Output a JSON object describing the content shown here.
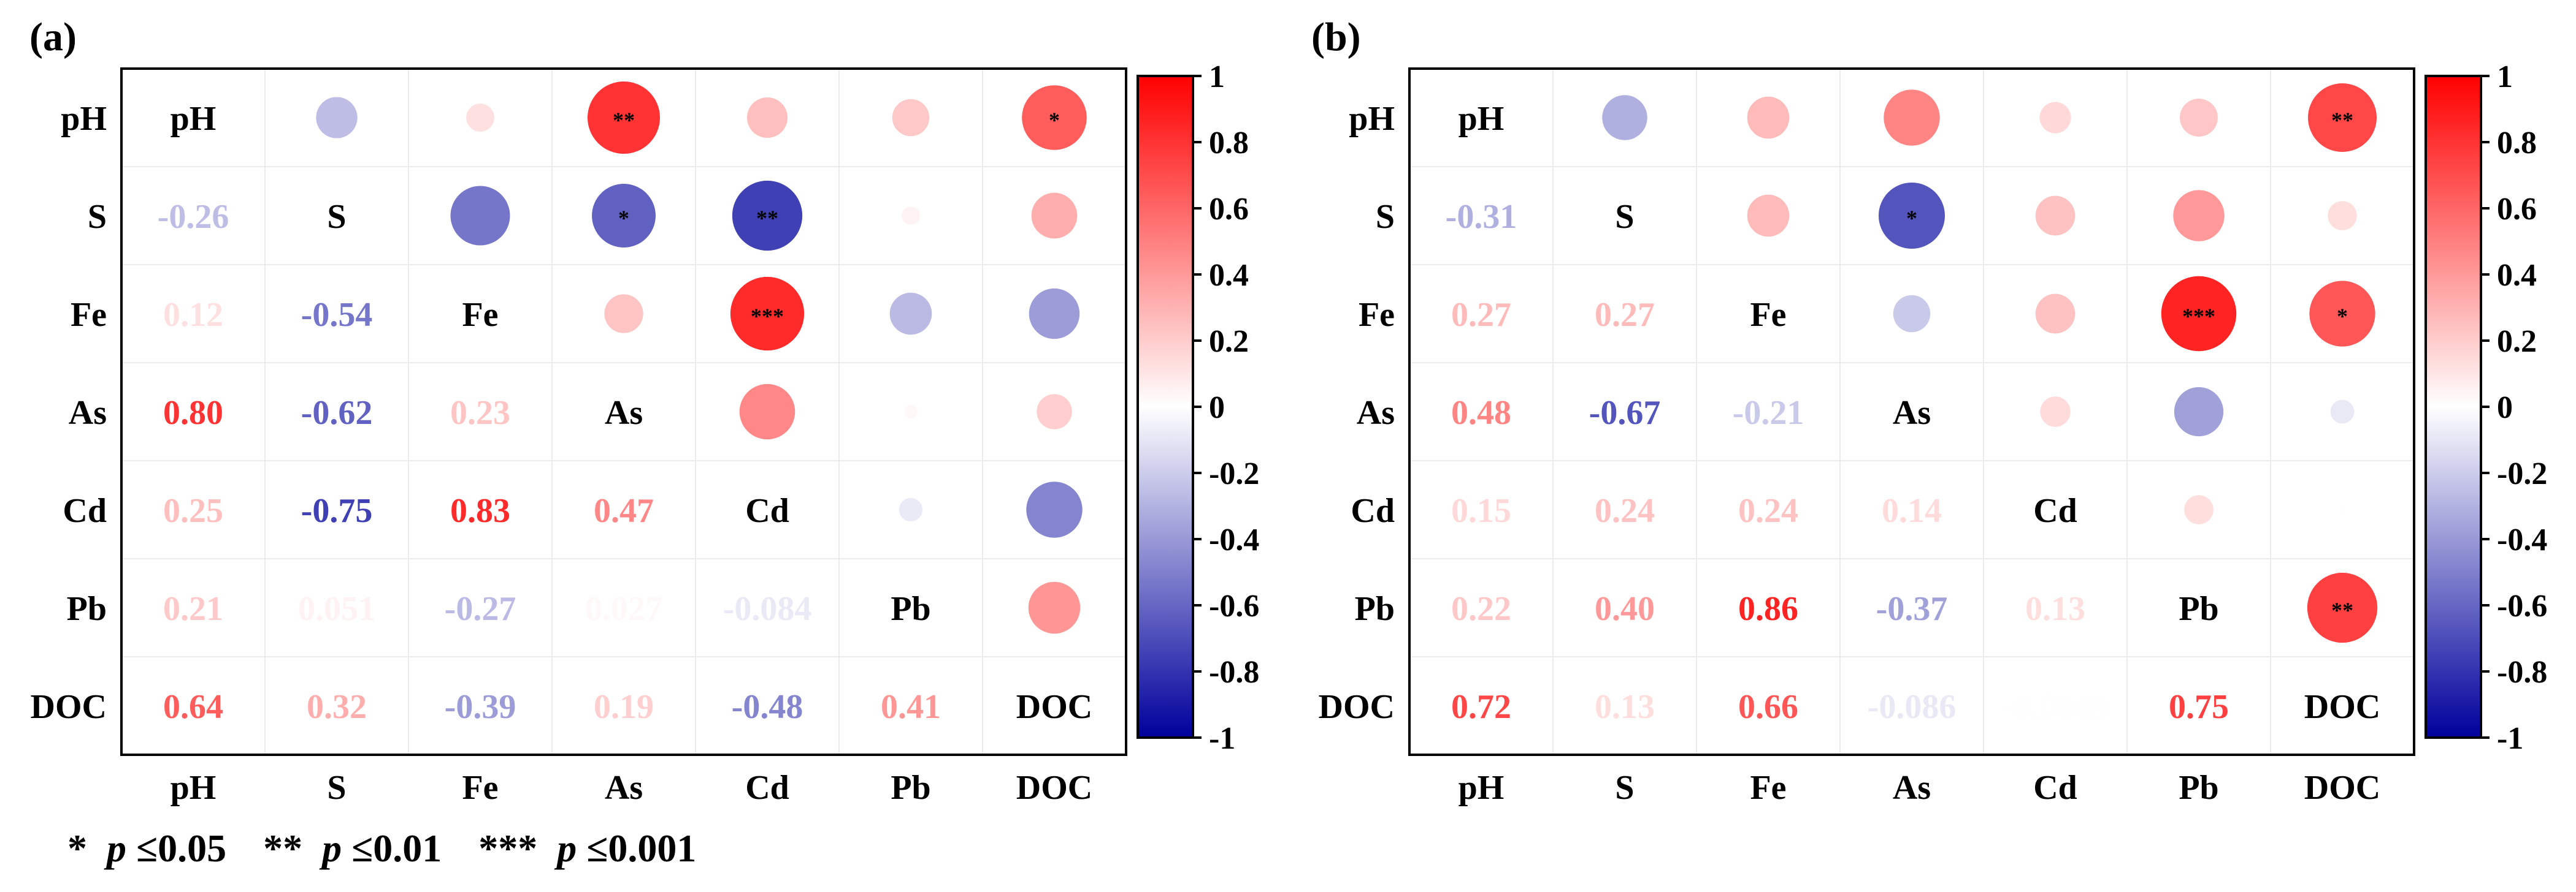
{
  "variables": [
    "pH",
    "S",
    "Fe",
    "As",
    "Cd",
    "Pb",
    "DOC"
  ],
  "colorscale": {
    "min": -1,
    "max": 1,
    "neg_color": "#00009c",
    "zero_color": "#ffffff",
    "pos_color": "#ff0000",
    "ticks": [
      "1",
      "0.8",
      "0.6",
      "0.4",
      "0.2",
      "0",
      "-0.2",
      "-0.4",
      "-0.6",
      "-0.8",
      "-1"
    ]
  },
  "footnote": {
    "s1": "*",
    "p1": "p",
    "r1": "≤0.05",
    "s2": "**",
    "p2": "p",
    "r2": "≤0.01",
    "s3": "***",
    "p3": "p",
    "r3": "≤0.001"
  },
  "chart_data": [
    {
      "type": "heatmap",
      "panel_label": "(a)",
      "variables": [
        "pH",
        "S",
        "Fe",
        "As",
        "Cd",
        "Pb",
        "DOC"
      ],
      "lower_triangle": "number",
      "upper_triangle": "circle",
      "correlations": [
        [
          1,
          -0.26,
          0.12,
          0.8,
          0.25,
          0.21,
          0.64
        ],
        [
          -0.26,
          1,
          -0.54,
          -0.62,
          -0.75,
          0.051,
          0.32
        ],
        [
          0.12,
          -0.54,
          1,
          0.23,
          0.83,
          -0.27,
          -0.39
        ],
        [
          0.8,
          -0.62,
          0.23,
          1,
          0.47,
          0.027,
          0.19
        ],
        [
          0.25,
          -0.75,
          0.83,
          0.47,
          1,
          -0.084,
          -0.48
        ],
        [
          0.21,
          0.051,
          -0.27,
          0.027,
          -0.084,
          1,
          0.41
        ],
        [
          0.64,
          0.32,
          -0.39,
          0.19,
          -0.48,
          0.41,
          1
        ]
      ],
      "labels": [
        [
          "pH",
          "",
          "",
          "",
          "",
          "",
          ""
        ],
        [
          "-0.26",
          "S",
          "",
          "",
          "",
          "",
          ""
        ],
        [
          "0.12",
          "-0.54",
          "Fe",
          "",
          "",
          "",
          ""
        ],
        [
          "0.80",
          "-0.62",
          "0.23",
          "As",
          "",
          "",
          ""
        ],
        [
          "0.25",
          "-0.75",
          "0.83",
          "0.47",
          "Cd",
          "",
          ""
        ],
        [
          "0.21",
          "0.051",
          "-0.27",
          "0.027",
          "-0.084",
          "Pb",
          ""
        ],
        [
          "0.64",
          "0.32",
          "-0.39",
          "0.19",
          "-0.48",
          "0.41",
          "DOC"
        ]
      ],
      "significance": [
        [
          "",
          "",
          "",
          "**",
          "",
          "",
          "*"
        ],
        [
          "",
          "",
          "",
          "*",
          "**",
          "",
          ""
        ],
        [
          "",
          "",
          "",
          "",
          "***",
          "",
          ""
        ],
        [
          "",
          "",
          "",
          "",
          "",
          "",
          ""
        ],
        [
          "",
          "",
          "",
          "",
          "",
          "",
          ""
        ],
        [
          "",
          "",
          "",
          "",
          "",
          "",
          ""
        ],
        [
          "",
          "",
          "",
          "",
          "",
          "",
          ""
        ]
      ]
    },
    {
      "type": "heatmap",
      "panel_label": "(b)",
      "variables": [
        "pH",
        "S",
        "Fe",
        "As",
        "Cd",
        "Pb",
        "DOC"
      ],
      "lower_triangle": "number",
      "upper_triangle": "circle",
      "correlations": [
        [
          1,
          -0.31,
          0.27,
          0.48,
          0.15,
          0.22,
          0.72
        ],
        [
          -0.31,
          1,
          0.27,
          -0.67,
          0.24,
          0.4,
          0.13
        ],
        [
          0.27,
          0.27,
          1,
          -0.21,
          0.24,
          0.86,
          0.66
        ],
        [
          0.48,
          -0.67,
          -0.21,
          1,
          0.14,
          -0.37,
          -0.086
        ],
        [
          0.15,
          0.24,
          0.24,
          0.14,
          1,
          0.13,
          -0.0049
        ],
        [
          0.22,
          0.4,
          0.86,
          -0.37,
          0.13,
          1,
          0.75
        ],
        [
          0.72,
          0.13,
          0.66,
          -0.086,
          -0.0049,
          0.75,
          1
        ]
      ],
      "labels": [
        [
          "pH",
          "",
          "",
          "",
          "",
          "",
          ""
        ],
        [
          "-0.31",
          "S",
          "",
          "",
          "",
          "",
          ""
        ],
        [
          "0.27",
          "0.27",
          "Fe",
          "",
          "",
          "",
          ""
        ],
        [
          "0.48",
          "-0.67",
          "-0.21",
          "As",
          "",
          "",
          ""
        ],
        [
          "0.15",
          "0.24",
          "0.24",
          "0.14",
          "Cd",
          "",
          ""
        ],
        [
          "0.22",
          "0.40",
          "0.86",
          "-0.37",
          "0.13",
          "Pb",
          ""
        ],
        [
          "0.72",
          "0.13",
          "0.66",
          "-0.086",
          "-0.0049",
          "0.75",
          "DOC"
        ]
      ],
      "significance": [
        [
          "",
          "",
          "",
          "",
          "",
          "",
          "**"
        ],
        [
          "",
          "",
          "",
          "*",
          "",
          "",
          ""
        ],
        [
          "",
          "",
          "",
          "",
          "",
          "***",
          "*"
        ],
        [
          "",
          "",
          "",
          "",
          "",
          "",
          ""
        ],
        [
          "",
          "",
          "",
          "",
          "",
          "",
          ""
        ],
        [
          "",
          "",
          "",
          "",
          "",
          "",
          "**"
        ],
        [
          "",
          "",
          "",
          "",
          "",
          "",
          ""
        ]
      ]
    }
  ]
}
